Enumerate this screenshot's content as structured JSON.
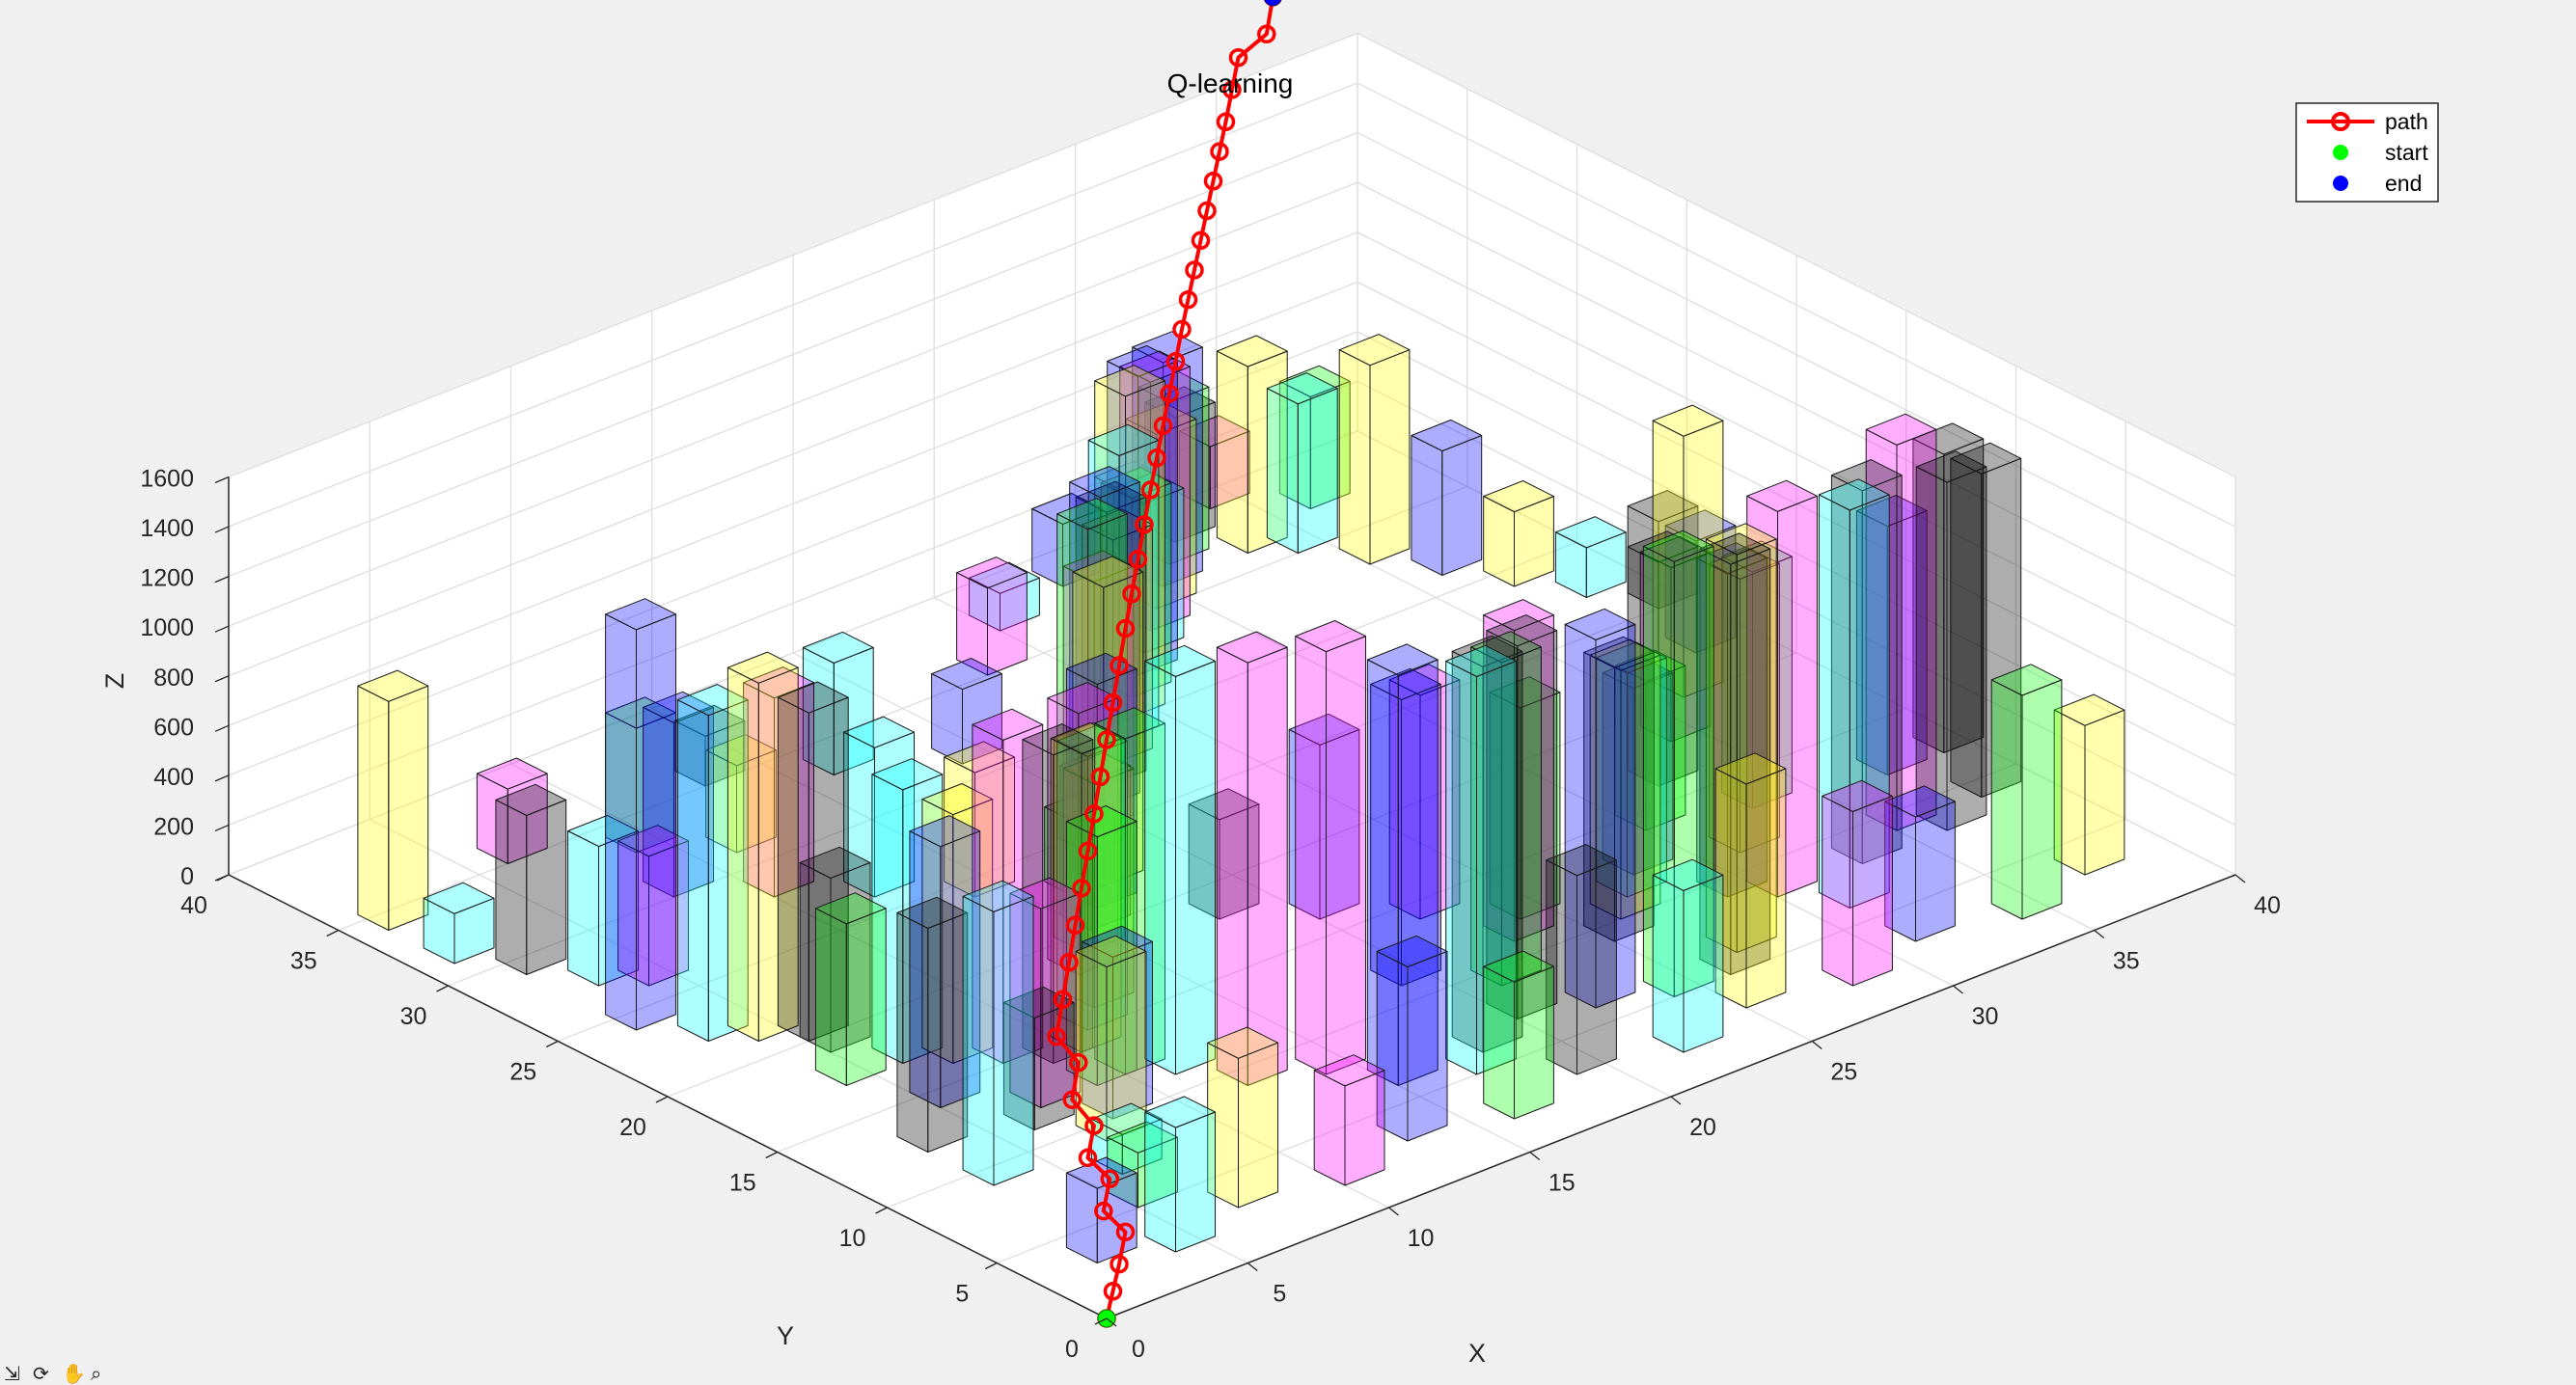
{
  "window": {
    "background": "#f0f0f0"
  },
  "toolbar": {
    "icons": [
      "data-tips-icon",
      "rotate-icon",
      "pan-icon",
      "zoom-icon"
    ]
  },
  "chart_data": {
    "type": "bar3d",
    "title": "Q-learning",
    "xlabel": "X",
    "ylabel": "Y",
    "zlabel": "Z",
    "xlim": [
      0,
      40
    ],
    "ylim": [
      0,
      40
    ],
    "zlim": [
      0,
      1600
    ],
    "xticks": [
      "0",
      "5",
      "10",
      "15",
      "20",
      "25",
      "30",
      "35",
      "40"
    ],
    "yticks": [
      "0",
      "5",
      "10",
      "15",
      "20",
      "25",
      "30",
      "35",
      "40"
    ],
    "zticks": [
      "0",
      "200",
      "400",
      "600",
      "800",
      "1000",
      "1200",
      "1400",
      "1600"
    ],
    "grid": true,
    "legend": {
      "placement": "top-right",
      "entries": [
        {
          "label": "path",
          "color": "#ff0000",
          "marker": "circle-open",
          "line": true
        },
        {
          "label": "start",
          "color": "#00ff00",
          "marker": "dot",
          "line": false
        },
        {
          "label": "end",
          "color": "#0000ff",
          "marker": "dot",
          "line": false
        }
      ]
    },
    "colors": {
      "path": "#ff0000",
      "start": "#00ff00",
      "end": "#0000ff",
      "obstacle_palette": [
        "#ffff00",
        "#00ffff",
        "#ff00ff",
        "#0000ff",
        "#00ff00",
        "#000000",
        "#ff8040"
      ]
    },
    "obstacles": [
      [
        1,
        34,
        920,
        "#ffff00"
      ],
      [
        1,
        31,
        200,
        "#00ffff"
      ],
      [
        2,
        29,
        640,
        "#000000"
      ],
      [
        3,
        27,
        560,
        "#00ffff"
      ],
      [
        4,
        26,
        520,
        "#ff00ff"
      ],
      [
        2,
        24,
        1610,
        "#0000ff"
      ],
      [
        3,
        22,
        1310,
        "#00ffff"
      ],
      [
        4,
        21,
        1440,
        "#ffff00"
      ],
      [
        5,
        20,
        1320,
        "#000000"
      ],
      [
        5,
        19,
        700,
        "#000000"
      ],
      [
        6,
        17,
        1100,
        "#00ffff"
      ],
      [
        7,
        16,
        1000,
        "#ffff00"
      ],
      [
        8,
        15,
        1300,
        "#ff00ff"
      ],
      [
        9,
        14,
        1240,
        "#000000"
      ],
      [
        10,
        12,
        1350,
        "#00ff00"
      ],
      [
        11,
        11,
        1600,
        "#00ffff"
      ],
      [
        12,
        9,
        1700,
        "#ff00ff"
      ],
      [
        14,
        8,
        1700,
        "#ff00ff"
      ],
      [
        15,
        6,
        1650,
        "#0000ff"
      ],
      [
        17,
        5,
        1600,
        "#00ffff"
      ],
      [
        18,
        6,
        1550,
        "#000000"
      ],
      [
        20,
        7,
        1500,
        "#000000"
      ],
      [
        22,
        6,
        1480,
        "#0000ff"
      ],
      [
        24,
        5,
        1750,
        "#00ff00"
      ],
      [
        26,
        5,
        1650,
        "#000000"
      ],
      [
        27,
        6,
        1600,
        "#ffff00"
      ],
      [
        30,
        8,
        1550,
        "#ff00ff"
      ],
      [
        31,
        6,
        1600,
        "#00ffff"
      ],
      [
        33,
        8,
        1500,
        "#000000"
      ],
      [
        35,
        9,
        1550,
        "#ff00ff"
      ],
      [
        36,
        8,
        1400,
        "#000000"
      ],
      [
        38,
        9,
        1300,
        "#000000"
      ],
      [
        37,
        12,
        1000,
        "#0000ff"
      ],
      [
        39,
        12,
        1200,
        "#000000"
      ],
      [
        5,
        5,
        220,
        "#00ff00"
      ],
      [
        6,
        7,
        160,
        "#00ffff"
      ],
      [
        7,
        9,
        700,
        "#ffff00"
      ],
      [
        8,
        10,
        650,
        "#0000ff"
      ],
      [
        9,
        12,
        1000,
        "#00ff00"
      ],
      [
        10,
        14,
        1200,
        "#ffff00"
      ],
      [
        11,
        15,
        1100,
        "#00ffff"
      ],
      [
        12,
        16,
        900,
        "#ff8040"
      ],
      [
        13,
        18,
        1050,
        "#ff00ff"
      ],
      [
        14,
        19,
        800,
        "#00ff00"
      ],
      [
        15,
        20,
        600,
        "#ff00ff"
      ],
      [
        16,
        21,
        900,
        "#0000ff"
      ],
      [
        17,
        22,
        1200,
        "#ffff00"
      ],
      [
        18,
        24,
        1300,
        "#00ff00"
      ],
      [
        19,
        25,
        1000,
        "#ff00ff"
      ],
      [
        20,
        26,
        1250,
        "#0000ff"
      ],
      [
        21,
        27,
        1100,
        "#000000"
      ],
      [
        22,
        28,
        900,
        "#ff8040"
      ],
      [
        23,
        29,
        1150,
        "#00ffff"
      ],
      [
        24,
        30,
        1300,
        "#ffff00"
      ],
      [
        25,
        31,
        800,
        "#00ff00"
      ],
      [
        26,
        32,
        1200,
        "#0000ff"
      ],
      [
        27,
        33,
        600,
        "#00ffff"
      ],
      [
        28,
        34,
        1000,
        "#ff00ff"
      ],
      [
        29,
        35,
        700,
        "#ffff00"
      ],
      [
        30,
        36,
        900,
        "#0000ff"
      ],
      [
        31,
        37,
        650,
        "#00ff00"
      ],
      [
        32,
        38,
        500,
        "#000000"
      ],
      [
        33,
        36,
        750,
        "#ffff00"
      ],
      [
        34,
        35,
        600,
        "#00ffff"
      ],
      [
        35,
        33,
        800,
        "#ffff00"
      ],
      [
        36,
        31,
        500,
        "#0000ff"
      ],
      [
        37,
        29,
        300,
        "#ffff00"
      ],
      [
        38,
        27,
        200,
        "#00ffff"
      ],
      [
        39,
        25,
        350,
        "#000000"
      ],
      [
        8,
        30,
        700,
        "#0000ff"
      ],
      [
        10,
        28,
        800,
        "#ff00ff"
      ],
      [
        12,
        26,
        600,
        "#00ffff"
      ],
      [
        14,
        24,
        500,
        "#ffff00"
      ],
      [
        16,
        22,
        300,
        "#00ff00"
      ],
      [
        18,
        18,
        400,
        "#000000"
      ],
      [
        20,
        16,
        700,
        "#0000ff"
      ],
      [
        22,
        14,
        900,
        "#ff00ff"
      ],
      [
        24,
        12,
        850,
        "#00ff00"
      ],
      [
        26,
        10,
        1000,
        "#ffff00"
      ],
      [
        28,
        12,
        750,
        "#0000ff"
      ],
      [
        30,
        14,
        600,
        "#00ff00"
      ],
      [
        32,
        16,
        900,
        "#000000"
      ],
      [
        34,
        18,
        700,
        "#ff00ff"
      ],
      [
        36,
        20,
        1050,
        "#ffff00"
      ],
      [
        38,
        22,
        450,
        "#0000ff"
      ],
      [
        6,
        35,
        300,
        "#ff00ff"
      ],
      [
        9,
        33,
        500,
        "#00ff00"
      ],
      [
        11,
        31,
        350,
        "#ffff00"
      ],
      [
        13,
        35,
        200,
        "#000000"
      ],
      [
        16,
        33,
        450,
        "#00ffff"
      ],
      [
        19,
        31,
        300,
        "#0000ff"
      ],
      [
        23,
        35,
        350,
        "#ff00ff"
      ],
      [
        25,
        37,
        150,
        "#00ffff"
      ],
      [
        28,
        38,
        250,
        "#0000ff"
      ],
      [
        31,
        39,
        200,
        "#00ffff"
      ],
      [
        34,
        39,
        250,
        "#ff00ff"
      ],
      [
        36,
        37,
        450,
        "#00ff00"
      ],
      [
        2,
        3,
        300,
        "#0000ff"
      ],
      [
        4,
        2,
        500,
        "#00ffff"
      ],
      [
        7,
        3,
        600,
        "#ffff00"
      ],
      [
        10,
        2,
        400,
        "#ff00ff"
      ],
      [
        13,
        3,
        700,
        "#0000ff"
      ],
      [
        16,
        2,
        550,
        "#00ff00"
      ],
      [
        19,
        3,
        800,
        "#000000"
      ],
      [
        22,
        2,
        650,
        "#00ffff"
      ],
      [
        25,
        3,
        900,
        "#ffff00"
      ],
      [
        28,
        2,
        700,
        "#ff00ff"
      ],
      [
        31,
        3,
        500,
        "#0000ff"
      ],
      [
        34,
        2,
        900,
        "#00ff00"
      ],
      [
        37,
        3,
        600,
        "#ffff00"
      ],
      [
        3,
        12,
        900,
        "#000000"
      ],
      [
        5,
        14,
        1050,
        "#0000ff"
      ],
      [
        7,
        12,
        800,
        "#ff00ff"
      ],
      [
        4,
        17,
        650,
        "#00ff00"
      ],
      [
        3,
        9,
        1100,
        "#00ffff"
      ],
      [
        6,
        11,
        450,
        "#000000"
      ],
      [
        19,
        11,
        1150,
        "#0000ff"
      ],
      [
        21,
        9,
        1300,
        "#00ff00"
      ],
      [
        23,
        11,
        1250,
        "#ff00ff"
      ],
      [
        25,
        9,
        1100,
        "#000000"
      ],
      [
        27,
        11,
        900,
        "#00ffff"
      ],
      [
        29,
        9,
        1300,
        "#0000ff"
      ],
      [
        31,
        11,
        1100,
        "#ffff00"
      ],
      [
        33,
        13,
        950,
        "#00ff00"
      ]
    ],
    "path": {
      "name": "path",
      "points": [
        [
          0,
          0,
          0
        ],
        [
          1,
          1,
          20
        ],
        [
          2,
          2,
          40
        ],
        [
          3,
          3,
          80
        ],
        [
          3,
          4,
          120
        ],
        [
          4,
          5,
          160
        ],
        [
          4,
          6,
          200
        ],
        [
          5,
          7,
          240
        ],
        [
          5,
          8,
          300
        ],
        [
          6,
          9,
          360
        ],
        [
          6,
          10,
          420
        ],
        [
          7,
          11,
          480
        ],
        [
          8,
          12,
          540
        ],
        [
          9,
          13,
          600
        ],
        [
          10,
          14,
          660
        ],
        [
          11,
          15,
          720
        ],
        [
          12,
          16,
          780
        ],
        [
          13,
          17,
          840
        ],
        [
          14,
          18,
          900
        ],
        [
          15,
          19,
          960
        ],
        [
          16,
          20,
          1020
        ],
        [
          17,
          21,
          1080
        ],
        [
          18,
          22,
          1130
        ],
        [
          19,
          23,
          1180
        ],
        [
          20,
          24,
          1230
        ],
        [
          21,
          25,
          1280
        ],
        [
          22,
          26,
          1320
        ],
        [
          23,
          27,
          1360
        ],
        [
          24,
          28,
          1400
        ],
        [
          25,
          29,
          1440
        ],
        [
          26,
          30,
          1480
        ],
        [
          27,
          31,
          1510
        ],
        [
          28,
          32,
          1540
        ],
        [
          29,
          33,
          1570
        ],
        [
          30,
          34,
          1600
        ],
        [
          31,
          35,
          1630
        ],
        [
          32,
          36,
          1660
        ],
        [
          33,
          37,
          1690
        ],
        [
          34,
          38,
          1730
        ],
        [
          35,
          39,
          1770
        ],
        [
          36,
          39,
          1820
        ],
        [
          37,
          40,
          1880
        ]
      ]
    },
    "start": [
      0,
      0,
      0
    ],
    "end": [
      37,
      40,
      1880
    ]
  }
}
